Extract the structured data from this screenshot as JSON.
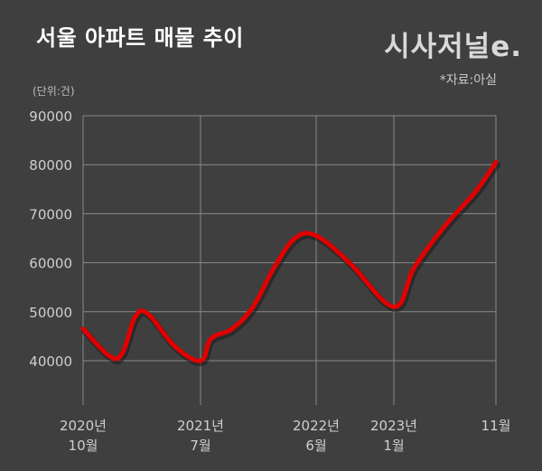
{
  "title": "서울 아파트 매물 추이",
  "logo": "시사저널e.",
  "source": "*자료:아실",
  "unit": "(단위:건)",
  "colors": {
    "background": "#3f3f3f",
    "line": "#e10000",
    "grid": "#8a8a8a"
  },
  "chart_data": {
    "type": "line",
    "title": "서울 아파트 매물 추이",
    "ylabel": "(단위:건)",
    "ylim": [
      30000,
      90000
    ],
    "yticks": [
      "40000",
      "50000",
      "60000",
      "70000",
      "80000",
      "90000"
    ],
    "grid": true,
    "xtick_labels": [
      {
        "line1": "2020년",
        "line2": "10월"
      },
      {
        "line1": "2021년",
        "line2": "7월"
      },
      {
        "line1": "2022년",
        "line2": "6월"
      },
      {
        "line1": "2023년",
        "line2": "1월"
      },
      {
        "line1": "",
        "line2": "11월"
      }
    ],
    "x_labels_order": [
      "2020-10",
      "2021-07",
      "2022-06",
      "2023-01",
      "2023-11"
    ],
    "series": [
      {
        "values": [
          {
            "x": "2020-10",
            "y": 46500
          },
          {
            "x": "2020-12",
            "y": 41000
          },
          {
            "x": "2021-01",
            "y": 41500
          },
          {
            "x": "2021-02",
            "y": 49000
          },
          {
            "x": "2021-03",
            "y": 49500
          },
          {
            "x": "2021-05",
            "y": 43000
          },
          {
            "x": "2021-07",
            "y": 40000
          },
          {
            "x": "2021-08",
            "y": 44500
          },
          {
            "x": "2021-10",
            "y": 46500
          },
          {
            "x": "2021-12",
            "y": 51000
          },
          {
            "x": "2022-02",
            "y": 59000
          },
          {
            "x": "2022-04",
            "y": 65000
          },
          {
            "x": "2022-06",
            "y": 65500
          },
          {
            "x": "2022-09",
            "y": 60000
          },
          {
            "x": "2023-01",
            "y": 51000
          },
          {
            "x": "2023-03",
            "y": 59000
          },
          {
            "x": "2023-06",
            "y": 67500
          },
          {
            "x": "2023-09",
            "y": 74500
          },
          {
            "x": "2023-11",
            "y": 80500
          }
        ]
      }
    ]
  }
}
